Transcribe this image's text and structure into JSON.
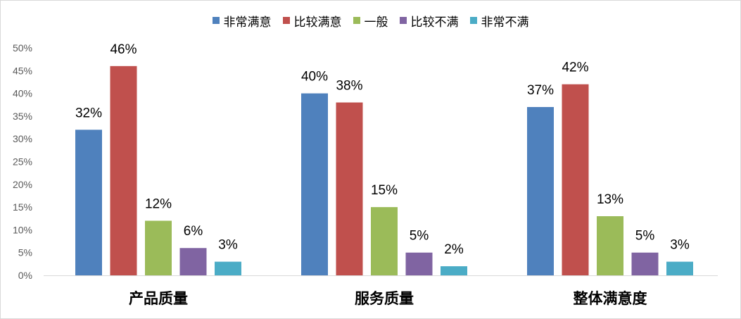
{
  "chart_data": {
    "type": "bar",
    "categories": [
      "产品质量",
      "服务质量",
      "整体满意度"
    ],
    "series": [
      {
        "name": "非常满意",
        "color": "#4f81bd",
        "values": [
          32,
          40,
          37
        ],
        "labels": [
          "32%",
          "40%",
          "37%"
        ]
      },
      {
        "name": "比较满意",
        "color": "#c0504d",
        "values": [
          46,
          38,
          42
        ],
        "labels": [
          "46%",
          "38%",
          "42%"
        ]
      },
      {
        "name": "一般",
        "color": "#9bbb59",
        "values": [
          12,
          15,
          13
        ],
        "labels": [
          "12%",
          "15%",
          "13%"
        ]
      },
      {
        "name": "比较不满",
        "color": "#8064a2",
        "values": [
          6,
          5,
          5
        ],
        "labels": [
          "6%",
          "5%",
          "5%"
        ]
      },
      {
        "name": "非常不满",
        "color": "#4bacc6",
        "values": [
          3,
          2,
          3
        ],
        "labels": [
          "3%",
          "2%",
          "3%"
        ]
      }
    ],
    "y_ticks": [
      {
        "value": 0,
        "label": "0%"
      },
      {
        "value": 5,
        "label": "5%"
      },
      {
        "value": 10,
        "label": "10%"
      },
      {
        "value": 15,
        "label": "15%"
      },
      {
        "value": 20,
        "label": "20%"
      },
      {
        "value": 25,
        "label": "25%"
      },
      {
        "value": 30,
        "label": "30%"
      },
      {
        "value": 35,
        "label": "35%"
      },
      {
        "value": 40,
        "label": "40%"
      },
      {
        "value": 45,
        "label": "45%"
      },
      {
        "value": 50,
        "label": "50%"
      }
    ],
    "ylim": [
      0,
      50
    ],
    "grid": false,
    "legend_position": "top",
    "title": "",
    "xlabel": "",
    "ylabel": ""
  }
}
